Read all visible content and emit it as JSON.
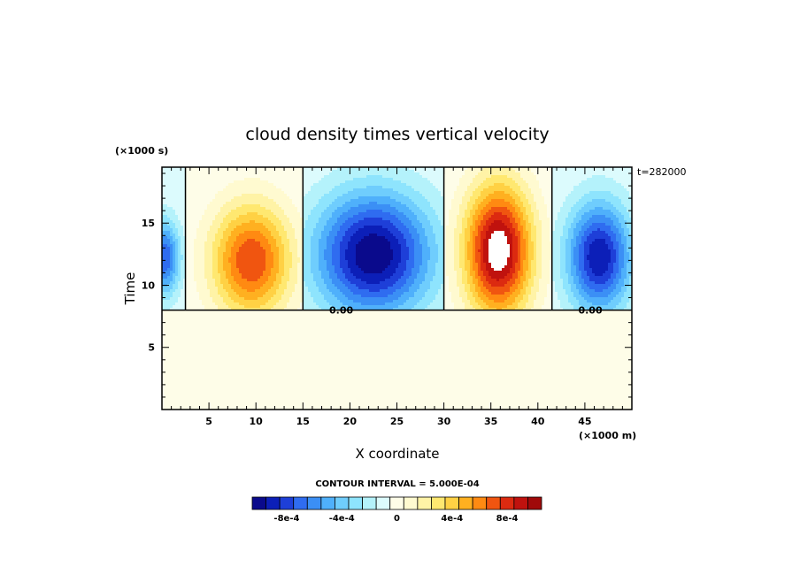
{
  "chart_data": {
    "type": "heatmap",
    "title": "cloud density times vertical velocity",
    "xlabel": "X coordinate",
    "ylabel": "Time",
    "x_unit": "(×1000 m)",
    "y_unit": "(×1000 s)",
    "time_stamp": "t=282000",
    "contour_interval_text": "CONTOUR INTERVAL = 5.000E-04",
    "xlim": [
      0,
      50
    ],
    "ylim": [
      0,
      19.5
    ],
    "x_ticks": [
      5,
      10,
      15,
      20,
      25,
      30,
      35,
      40,
      45
    ],
    "y_ticks": [
      5,
      10,
      15
    ],
    "zero_contour_label": "0.00",
    "colorbar": {
      "levels": [
        -0.001,
        -0.0009,
        -0.0008,
        -0.0007,
        -0.0006,
        -0.0005,
        -0.0004,
        -0.0003,
        -0.0002,
        -0.0001,
        0,
        0.0001,
        0.0002,
        0.0003,
        0.0004,
        0.0005,
        0.0006,
        0.0007,
        0.0008,
        0.0009,
        0.001
      ],
      "tick_labels": [
        {
          "value": -0.0008,
          "label": "-8e-4"
        },
        {
          "value": -0.0004,
          "label": "-4e-4"
        },
        {
          "value": 0,
          "label": "0"
        },
        {
          "value": 0.0004,
          "label": "4e-4"
        },
        {
          "value": 0.0008,
          "label": "8e-4"
        }
      ],
      "colors": [
        "#0a0a8c",
        "#0c1fb8",
        "#1e3fd8",
        "#2f6cf0",
        "#3b8ff5",
        "#4fb0fb",
        "#6fcdfd",
        "#8ee4fd",
        "#b4f2fb",
        "#dcfbfd",
        "#fefde8",
        "#fffad0",
        "#fff3a6",
        "#ffe870",
        "#ffd144",
        "#ffb020",
        "#ff8a12",
        "#f05510",
        "#dc2a10",
        "#c0120e",
        "#a00a0a"
      ]
    },
    "background_value": 0,
    "cells": [
      {
        "x": [
          0,
          2.5
        ],
        "y": [
          8,
          19.5
        ],
        "peak": -0.0007,
        "center": [
          0.2,
          12.2
        ],
        "radius": [
          1.8,
          3.2
        ]
      },
      {
        "x": [
          2.5,
          15
        ],
        "y": [
          8,
          19.5
        ],
        "peak": 0.0008,
        "center": [
          9.5,
          12.0
        ],
        "radius": [
          4.5,
          4.8
        ]
      },
      {
        "x": [
          15,
          30
        ],
        "y": [
          8,
          19.5
        ],
        "peak": -0.001,
        "center": [
          22.5,
          12.5
        ],
        "radius": [
          6.5,
          5.2
        ]
      },
      {
        "x": [
          30,
          41.5
        ],
        "y": [
          8,
          19.5
        ],
        "peak": 0.0011,
        "center": [
          35.8,
          12.8
        ],
        "radius": [
          3.8,
          5.6
        ]
      },
      {
        "x": [
          41.5,
          50
        ],
        "y": [
          8,
          19.5
        ],
        "peak": -0.0009,
        "center": [
          46.5,
          12.3
        ],
        "radius": [
          3.6,
          4.6
        ]
      }
    ]
  }
}
